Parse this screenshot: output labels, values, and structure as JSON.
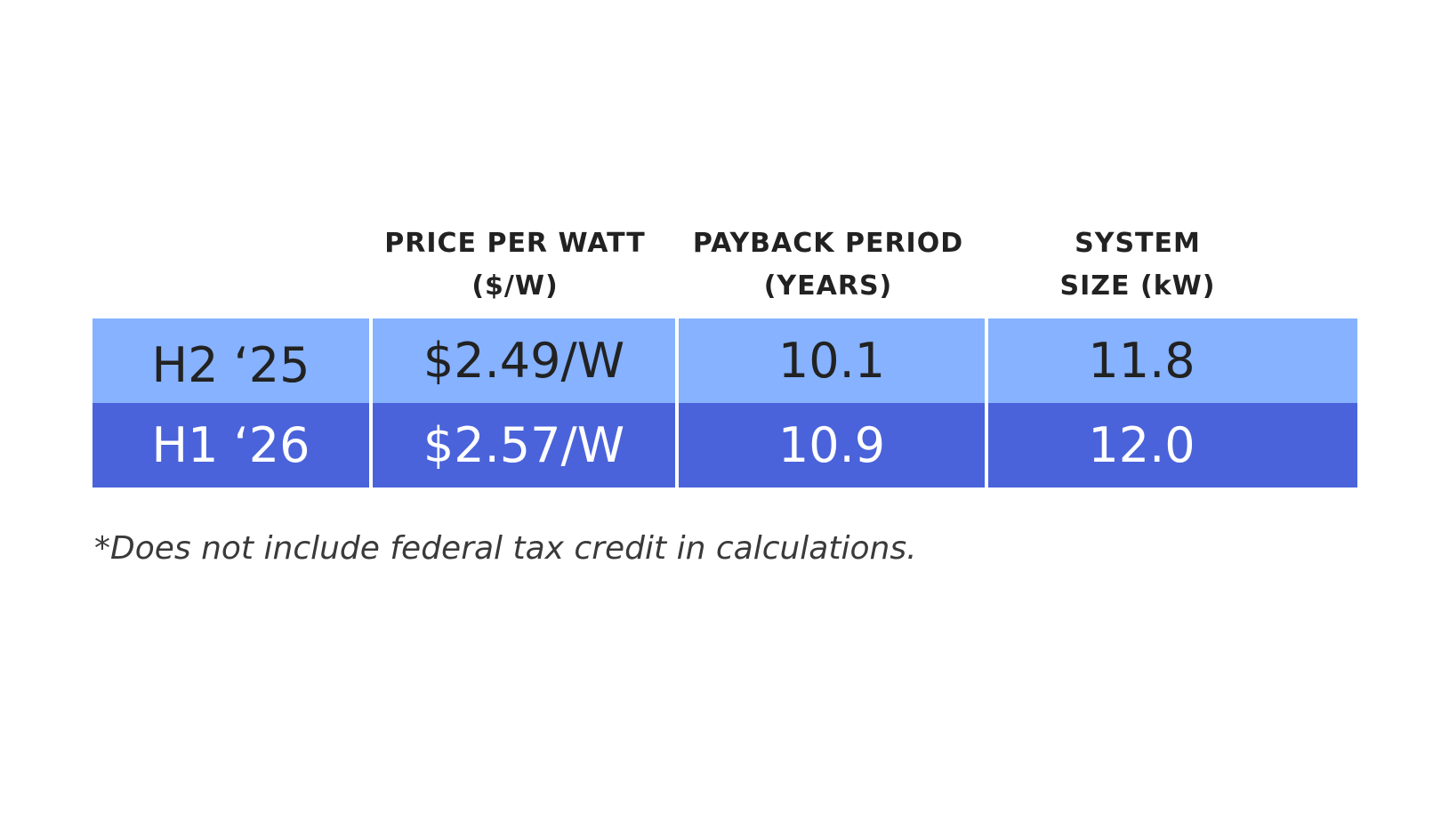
{
  "table": {
    "headers": [
      {
        "line1": "",
        "line2": ""
      },
      {
        "line1": "PRICE PER WATT",
        "line2": "($/W)"
      },
      {
        "line1": "PAYBACK PERIOD",
        "line2": "(YEARS)"
      },
      {
        "line1": "SYSTEM",
        "line2": "SIZE (kW)"
      }
    ],
    "rows": [
      {
        "period": "H2 ‘25",
        "price_per_watt": "$2.49/W",
        "payback_period": "10.1",
        "system_size": "11.8"
      },
      {
        "period": "H1 ‘26",
        "price_per_watt": "$2.57/W",
        "payback_period": "10.9",
        "system_size": "12.0"
      }
    ]
  },
  "footnote": "*Does not include federal tax credit in calculations.",
  "colors": {
    "row_light": "#86b2ff",
    "row_dark": "#4a63db",
    "text_dark": "#222222",
    "text_light": "#ffffff"
  }
}
